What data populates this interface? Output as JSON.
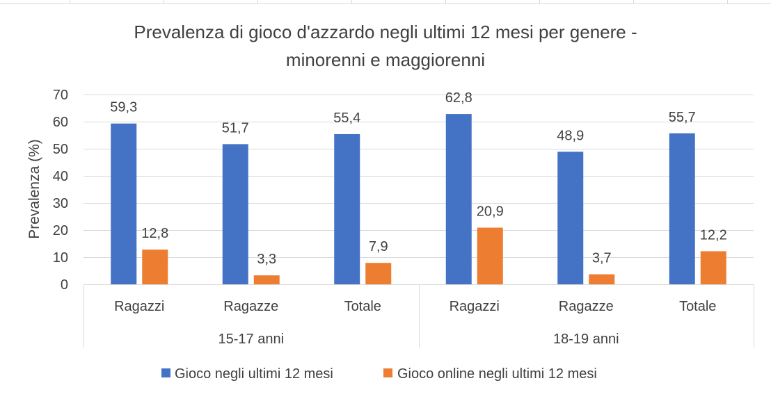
{
  "chart_data": {
    "type": "bar",
    "title": "Prevalenza di gioco d'azzardo negli ultimi 12 mesi per genere - minorenni e maggiorenni",
    "title_lines": [
      "Prevalenza di gioco d'azzardo negli ultimi 12 mesi per genere -",
      "minorenni e maggiorenni"
    ],
    "xlabel": "",
    "ylabel": "Prevalenza (%)",
    "ylim": [
      0,
      70
    ],
    "yticks": [
      0,
      10,
      20,
      30,
      40,
      50,
      60,
      70
    ],
    "grid": true,
    "legend_position": "bottom",
    "groups": [
      {
        "label": "15-17 anni",
        "categories": [
          "Ragazzi",
          "Ragazze",
          "Totale"
        ]
      },
      {
        "label": "18-19 anni",
        "categories": [
          "Ragazzi",
          "Ragazze",
          "Totale"
        ]
      }
    ],
    "categories": [
      "Ragazzi",
      "Ragazze",
      "Totale",
      "Ragazzi",
      "Ragazze",
      "Totale"
    ],
    "series": [
      {
        "name": "Gioco negli ultimi 12 mesi",
        "color": "#4472c4",
        "values": [
          59.3,
          51.7,
          55.4,
          62.8,
          48.9,
          55.7
        ],
        "labels": [
          "59,3",
          "51,7",
          "55,4",
          "62,8",
          "48,9",
          "55,7"
        ]
      },
      {
        "name": "Gioco online negli ultimi 12 mesi",
        "color": "#ed7d31",
        "values": [
          12.8,
          3.3,
          7.9,
          20.9,
          3.7,
          12.2
        ],
        "labels": [
          "12,8",
          "3,3",
          "7,9",
          "20,9",
          "3,7",
          "12,2"
        ]
      }
    ]
  }
}
